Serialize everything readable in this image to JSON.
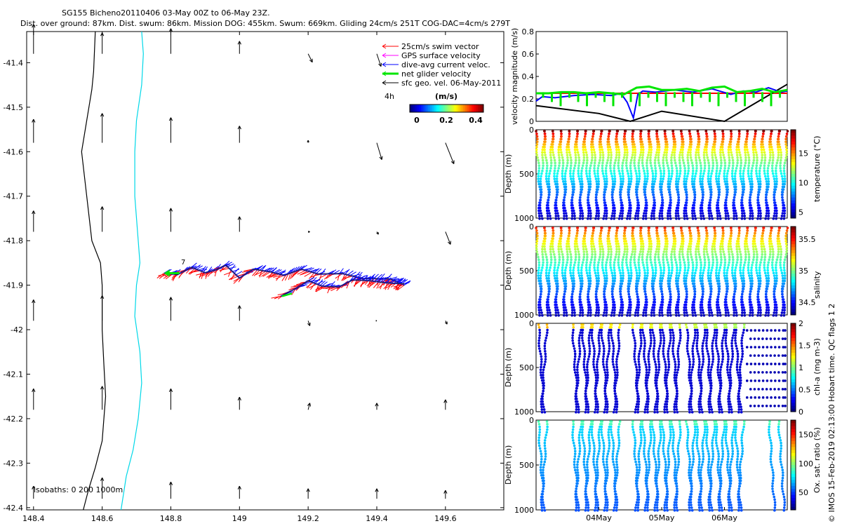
{
  "figure": {
    "title": "SG155 Bicheno20110406 03-May 00Z to 06-May 23Z.",
    "subtitle": "Dist. over ground: 87km. Dist. swum: 86km. Mission DOG: 455km. Swum: 669km. Gliding 24cm/s 251T COG-DAC=4cm/s 279T",
    "footer_note": "© IMOS 15-Feb-2019 02:13:00 Hobart time. QC flags 1  2"
  },
  "chart_data": [
    {
      "id": "map",
      "type": "scatter",
      "xlim": [
        148.38,
        149.77
      ],
      "ylim": [
        -42.405,
        -41.33
      ],
      "x_ticks": [
        148.4,
        148.6,
        148.8,
        149,
        149.2,
        149.4,
        149.6
      ],
      "x_tick_labels": [
        "148.4",
        "148.6",
        "148.8",
        "149",
        "149.2",
        "149.4",
        "149.6"
      ],
      "y_ticks": [
        -41.4,
        -41.5,
        -41.6,
        -41.7,
        -41.8,
        -41.9,
        -42,
        -42.1,
        -42.2,
        -42.3,
        -42.4
      ],
      "y_tick_labels": [
        "-41.4",
        "-41.5",
        "-41.6",
        "-41.7",
        "-41.8",
        "-41.9",
        "-42",
        "-42.1",
        "-42.2",
        "-42.3",
        "-42.4"
      ],
      "legend": {
        "position": "top-right",
        "entries": [
          {
            "label": "25cm/s swim vector",
            "color": "#ff0000"
          },
          {
            "label": "GPS surface velocity",
            "color": "#ff00ff"
          },
          {
            "label": "dive-avg current veloc.",
            "color": "#0000ff"
          },
          {
            "label": "net glider velocity",
            "color": "#00e600"
          },
          {
            "label": "sfc geo. vel. 06-May-2011",
            "color": "#000000"
          }
        ],
        "note": "4h"
      },
      "colorbar": {
        "label": "(m/s)",
        "ticks": [
          "0",
          "0.2",
          "0.4"
        ],
        "range": [
          0,
          0.5
        ]
      },
      "isobaths_label": "isobaths: 0   200  1000m",
      "track_label": "7",
      "isobath_lines": [
        {
          "depth": 0,
          "color": "#000000",
          "points": [
            [
              148.58,
              -41.33
            ],
            [
              148.575,
              -41.42
            ],
            [
              148.57,
              -41.46
            ],
            [
              148.555,
              -41.53
            ],
            [
              148.54,
              -41.6
            ],
            [
              148.555,
              -41.7
            ],
            [
              148.57,
              -41.8
            ],
            [
              148.595,
              -41.85
            ],
            [
              148.6,
              -41.9
            ],
            [
              148.6,
              -41.95
            ],
            [
              148.6,
              -42.0
            ],
            [
              148.605,
              -42.08
            ],
            [
              148.61,
              -42.15
            ],
            [
              148.6,
              -42.25
            ],
            [
              148.58,
              -42.31
            ],
            [
              148.56,
              -42.36
            ],
            [
              148.545,
              -42.405
            ]
          ]
        },
        {
          "depth": 200,
          "color": "#00d8e8",
          "points": [
            [
              148.715,
              -41.33
            ],
            [
              148.72,
              -41.38
            ],
            [
              148.715,
              -41.45
            ],
            [
              148.7,
              -41.53
            ],
            [
              148.695,
              -41.6
            ],
            [
              148.695,
              -41.7
            ],
            [
              148.705,
              -41.8
            ],
            [
              148.71,
              -41.85
            ],
            [
              148.7,
              -41.9
            ],
            [
              148.695,
              -41.97
            ],
            [
              148.71,
              -42.05
            ],
            [
              148.715,
              -42.12
            ],
            [
              148.705,
              -42.2
            ],
            [
              148.69,
              -42.27
            ],
            [
              148.67,
              -42.33
            ],
            [
              148.655,
              -42.405
            ]
          ]
        }
      ],
      "track_a": [
        [
          148.78,
          -41.873
        ],
        [
          148.82,
          -41.876
        ],
        [
          148.86,
          -41.86
        ],
        [
          148.9,
          -41.872
        ],
        [
          148.93,
          -41.866
        ],
        [
          148.96,
          -41.855
        ],
        [
          149.0,
          -41.884
        ],
        [
          149.04,
          -41.864
        ],
        [
          149.09,
          -41.87
        ],
        [
          149.13,
          -41.878
        ],
        [
          149.18,
          -41.864
        ],
        [
          149.23,
          -41.875
        ],
        [
          149.3,
          -41.874
        ],
        [
          149.36,
          -41.885
        ],
        [
          149.44,
          -41.886
        ],
        [
          149.48,
          -41.9
        ]
      ],
      "track_b": [
        [
          149.12,
          -41.925
        ],
        [
          149.17,
          -41.905
        ],
        [
          149.2,
          -41.89
        ],
        [
          149.24,
          -41.902
        ],
        [
          149.29,
          -41.904
        ],
        [
          149.33,
          -41.888
        ],
        [
          149.38,
          -41.89
        ],
        [
          149.43,
          -41.895
        ],
        [
          149.48,
          -41.897
        ]
      ],
      "geo_vectors": [
        {
          "x": 148.4,
          "y": -41.38,
          "u": 0.0,
          "v": 0.35
        },
        {
          "x": 148.6,
          "y": -41.38,
          "u": 0.0,
          "v": 0.25
        },
        {
          "x": 148.8,
          "y": -41.38,
          "u": 0.0,
          "v": 0.3
        },
        {
          "x": 149.0,
          "y": -41.38,
          "u": 0.0,
          "v": 0.15
        },
        {
          "x": 149.2,
          "y": -41.38,
          "u": 0.05,
          "v": -0.1
        },
        {
          "x": 149.4,
          "y": -41.38,
          "u": 0.05,
          "v": -0.15
        },
        {
          "x": 148.4,
          "y": -41.58,
          "u": 0.0,
          "v": 0.28
        },
        {
          "x": 148.6,
          "y": -41.58,
          "u": 0.0,
          "v": 0.35
        },
        {
          "x": 148.8,
          "y": -41.58,
          "u": 0.0,
          "v": 0.3
        },
        {
          "x": 149.0,
          "y": -41.58,
          "u": 0.0,
          "v": 0.2
        },
        {
          "x": 149.2,
          "y": -41.58,
          "u": 0.0,
          "v": 0.03
        },
        {
          "x": 149.4,
          "y": -41.58,
          "u": 0.06,
          "v": -0.2
        },
        {
          "x": 149.6,
          "y": -41.58,
          "u": 0.1,
          "v": -0.25
        },
        {
          "x": 148.4,
          "y": -41.78,
          "u": 0.0,
          "v": 0.25
        },
        {
          "x": 148.6,
          "y": -41.78,
          "u": 0.0,
          "v": 0.3
        },
        {
          "x": 148.8,
          "y": -41.78,
          "u": 0.0,
          "v": 0.28
        },
        {
          "x": 149.0,
          "y": -41.78,
          "u": 0.0,
          "v": 0.18
        },
        {
          "x": 149.2,
          "y": -41.78,
          "u": 0.02,
          "v": 0.0
        },
        {
          "x": 149.4,
          "y": -41.78,
          "u": 0.02,
          "v": -0.03
        },
        {
          "x": 149.6,
          "y": -41.78,
          "u": 0.06,
          "v": -0.15
        },
        {
          "x": 148.4,
          "y": -41.98,
          "u": 0.0,
          "v": 0.25
        },
        {
          "x": 148.6,
          "y": -41.98,
          "u": 0.0,
          "v": 0.3
        },
        {
          "x": 148.8,
          "y": -41.98,
          "u": 0.0,
          "v": 0.28
        },
        {
          "x": 149.0,
          "y": -41.98,
          "u": 0.0,
          "v": 0.18
        },
        {
          "x": 149.2,
          "y": -41.98,
          "u": 0.02,
          "v": -0.06
        },
        {
          "x": 149.4,
          "y": -41.98,
          "u": 0.0,
          "v": 0.0
        },
        {
          "x": 149.6,
          "y": -41.98,
          "u": 0.02,
          "v": -0.04
        },
        {
          "x": 148.4,
          "y": -42.18,
          "u": 0.0,
          "v": 0.25
        },
        {
          "x": 148.6,
          "y": -42.18,
          "u": 0.0,
          "v": 0.28
        },
        {
          "x": 148.8,
          "y": -42.18,
          "u": 0.0,
          "v": 0.25
        },
        {
          "x": 149.0,
          "y": -42.18,
          "u": 0.0,
          "v": 0.15
        },
        {
          "x": 149.2,
          "y": -42.18,
          "u": 0.02,
          "v": 0.08
        },
        {
          "x": 149.4,
          "y": -42.18,
          "u": 0.0,
          "v": 0.08
        },
        {
          "x": 149.6,
          "y": -42.18,
          "u": 0.0,
          "v": 0.12
        },
        {
          "x": 148.4,
          "y": -42.38,
          "u": 0.0,
          "v": 0.15
        },
        {
          "x": 148.6,
          "y": -42.38,
          "u": 0.0,
          "v": 0.25
        },
        {
          "x": 148.8,
          "y": -42.38,
          "u": 0.0,
          "v": 0.2
        },
        {
          "x": 149.0,
          "y": -42.38,
          "u": 0.0,
          "v": 0.15
        },
        {
          "x": 149.2,
          "y": -42.38,
          "u": 0.0,
          "v": 0.12
        },
        {
          "x": 149.4,
          "y": -42.38,
          "u": 0.0,
          "v": 0.12
        },
        {
          "x": 149.6,
          "y": -42.38,
          "u": 0.0,
          "v": 0.1
        }
      ]
    },
    {
      "id": "velocity",
      "type": "line",
      "ylabel": "velocity magnitude (m/s)",
      "xlim": [
        0,
        4
      ],
      "ylim": [
        0,
        0.8
      ],
      "y_ticks": [
        0,
        0.2,
        0.4,
        0.6,
        0.8
      ],
      "y_tick_labels": [
        "0",
        "0.2",
        "0.4",
        "0.6",
        "0.8"
      ],
      "series": [
        {
          "color": "#ff0000",
          "x": [
            0,
            4
          ],
          "y": [
            0.25,
            0.25
          ]
        },
        {
          "color": "#000000",
          "x": [
            0,
            1.0,
            1.5,
            2.0,
            3.0,
            4.0
          ],
          "y": [
            0.14,
            0.07,
            0.0,
            0.09,
            0.0,
            0.33
          ]
        },
        {
          "color": "#0000ff",
          "x": [
            0,
            0.1,
            0.3,
            0.6,
            0.9,
            1.2,
            1.35,
            1.45,
            1.55,
            1.62,
            1.7,
            1.9,
            2.2,
            2.5,
            2.8,
            3.1,
            3.3,
            3.5,
            3.7,
            3.9,
            4.0
          ],
          "y": [
            0.18,
            0.22,
            0.21,
            0.23,
            0.24,
            0.23,
            0.25,
            0.17,
            0.03,
            0.24,
            0.27,
            0.26,
            0.28,
            0.26,
            0.29,
            0.24,
            0.27,
            0.26,
            0.3,
            0.26,
            0.27
          ]
        },
        {
          "color": "#00e600",
          "x": [
            0,
            0.2,
            0.4,
            0.6,
            0.8,
            1.0,
            1.2,
            1.4,
            1.6,
            1.8,
            2.0,
            2.2,
            2.4,
            2.6,
            2.8,
            3.0,
            3.2,
            3.4,
            3.6,
            3.8,
            4.0
          ],
          "y": [
            0.25,
            0.25,
            0.26,
            0.26,
            0.25,
            0.26,
            0.25,
            0.24,
            0.3,
            0.31,
            0.28,
            0.28,
            0.29,
            0.27,
            0.3,
            0.31,
            0.26,
            0.27,
            0.29,
            0.26,
            0.28
          ]
        }
      ]
    },
    {
      "id": "temperature",
      "type": "scatter",
      "ylabel": "Depth (m)",
      "clabel": "temperature (°C)",
      "ylim": [
        1000,
        0
      ],
      "y_ticks": [
        0,
        500,
        1000
      ],
      "c_ticks": [
        "5",
        "10",
        "15"
      ],
      "crange": [
        4,
        19
      ],
      "profiles": 31,
      "surface_value": 18,
      "deep_value": 4.5
    },
    {
      "id": "salinity",
      "type": "scatter",
      "ylabel": "Depth (m)",
      "clabel": "salinity",
      "ylim": [
        1000,
        0
      ],
      "y_ticks": [
        0,
        500,
        1000
      ],
      "c_ticks": [
        "34.5",
        "35",
        "35.5"
      ],
      "crange": [
        34.3,
        35.7
      ],
      "profiles": 31,
      "surface_value": 35.5,
      "deep_value": 34.4
    },
    {
      "id": "chla",
      "type": "scatter",
      "ylabel": "Depth (m)",
      "clabel": "chl-a (mg m-3)",
      "ylim": [
        1000,
        0
      ],
      "y_ticks": [
        0,
        500,
        1000
      ],
      "c_ticks": [
        "0",
        "0.5",
        "1",
        "1.5",
        "2"
      ],
      "crange": [
        0,
        2
      ],
      "profile_positions": [
        0.01,
        0.15,
        0.19,
        0.23,
        0.27,
        0.31,
        0.4,
        0.44,
        0.48,
        0.52,
        0.56,
        0.62,
        0.66,
        0.7,
        0.74,
        0.78,
        0.82
      ],
      "sparse_region": [
        0.84,
        1.0
      ]
    },
    {
      "id": "oxygen",
      "type": "scatter",
      "ylabel": "Depth (m)",
      "clabel": "Ox. sat. ratio (%)",
      "ylim": [
        1000,
        0
      ],
      "y_ticks": [
        0,
        500,
        1000
      ],
      "c_ticks": [
        "50",
        "100",
        "150"
      ],
      "crange": [
        20,
        175
      ],
      "profile_positions": [
        0.01,
        0.15,
        0.19,
        0.23,
        0.27,
        0.31,
        0.4,
        0.44,
        0.48,
        0.52,
        0.56,
        0.62,
        0.66,
        0.7,
        0.74,
        0.78,
        0.82,
        0.96,
        1.0
      ],
      "x_tick_labels": [
        "04May",
        "05May",
        "06May"
      ],
      "x_ticks": [
        0.25,
        0.5,
        0.75
      ]
    }
  ],
  "colors": {
    "axes": "#000000",
    "background": "#ffffff"
  }
}
